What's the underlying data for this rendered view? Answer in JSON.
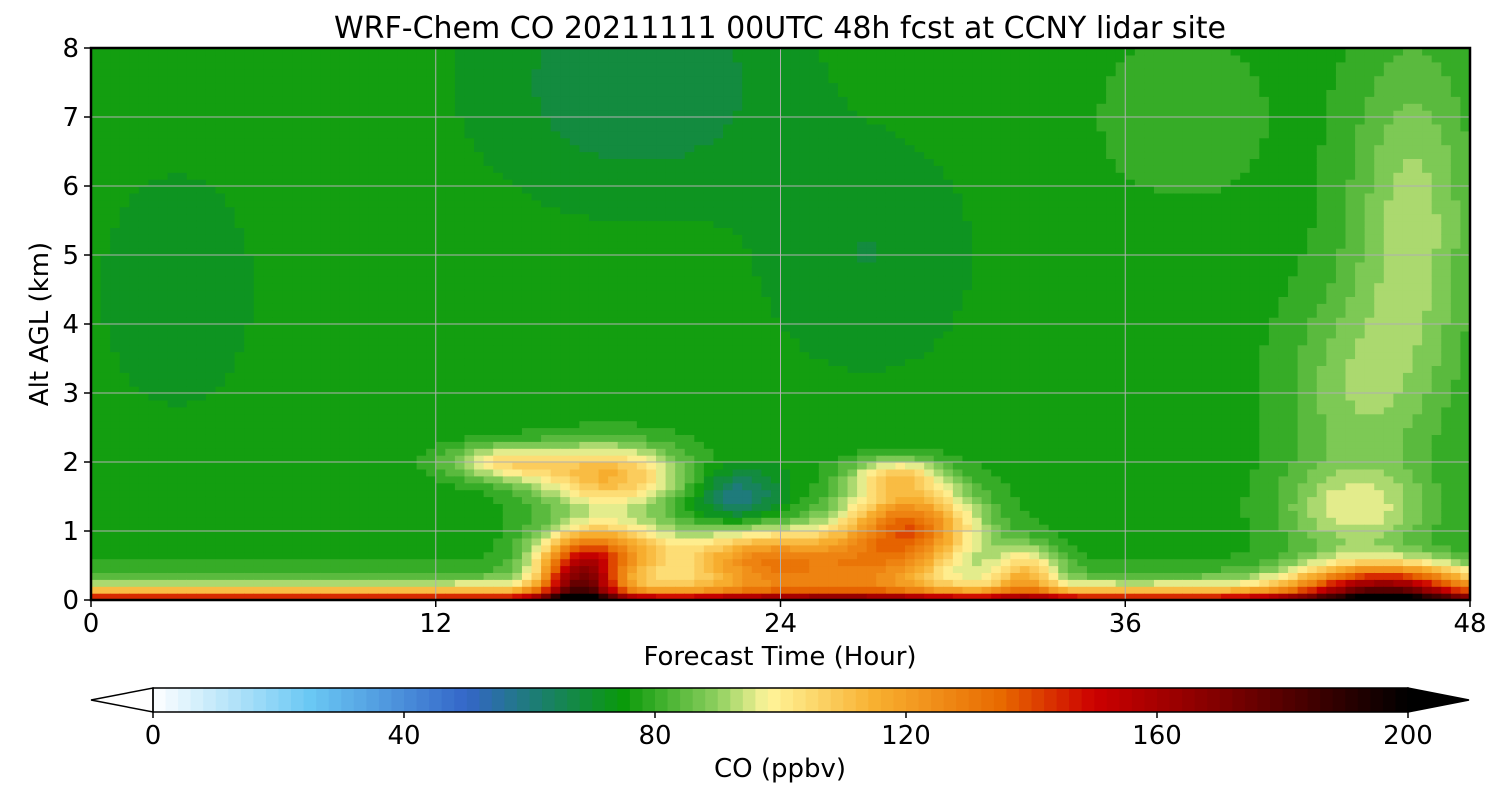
{
  "chart_data": {
    "type": "heatmap",
    "title": "WRF-Chem CO  20211111 00UTC 48h fcst at CCNY lidar site",
    "xlabel": "Forecast Time (Hour)",
    "ylabel": "Alt AGL (km)",
    "xlim": [
      0,
      48
    ],
    "ylim": [
      0,
      8
    ],
    "x_ticks": [
      "0",
      "12",
      "24",
      "36",
      "48"
    ],
    "y_ticks": [
      "0",
      "1",
      "2",
      "3",
      "4",
      "5",
      "6",
      "7",
      "8"
    ],
    "grid": true,
    "colorbar": {
      "label": "CO  (ppbv)",
      "min": 0,
      "max": 200,
      "ticks": [
        "0",
        "40",
        "80",
        "120",
        "160",
        "200"
      ],
      "extend": "both",
      "under_color": "#ffffff",
      "over_color": "#000000",
      "stops": [
        {
          "value": 0,
          "color": "#ffffff"
        },
        {
          "value": 25,
          "color": "#6ac8f4"
        },
        {
          "value": 50,
          "color": "#3466c8"
        },
        {
          "value": 62,
          "color": "#1a7f6c"
        },
        {
          "value": 75,
          "color": "#0a9a0a"
        },
        {
          "value": 90,
          "color": "#8fd060"
        },
        {
          "value": 98,
          "color": "#fff59a"
        },
        {
          "value": 115,
          "color": "#f8b030"
        },
        {
          "value": 135,
          "color": "#e86a00"
        },
        {
          "value": 150,
          "color": "#cc0000"
        },
        {
          "value": 170,
          "color": "#800000"
        },
        {
          "value": 200,
          "color": "#000000"
        }
      ]
    },
    "features": [
      {
        "name": "background",
        "base": 76,
        "x": [
          0,
          48
        ],
        "y": [
          0,
          8
        ]
      },
      {
        "name": "upper-low-co-region",
        "center": [
          19,
          7.5
        ],
        "spread": [
          5,
          1.6
        ],
        "amp": -10
      },
      {
        "name": "left-low-co-region",
        "center": [
          3,
          4.5
        ],
        "spread": [
          2.5,
          1.6
        ],
        "amp": -6
      },
      {
        "name": "mid-low-co-region",
        "center": [
          27,
          5
        ],
        "spread": [
          3.5,
          1.6
        ],
        "amp": -6
      },
      {
        "name": "right-high-co-region",
        "center": [
          46,
          5.5
        ],
        "spread": [
          2.2,
          2.5
        ],
        "amp": 16
      },
      {
        "name": "right-mid-high-co-region",
        "center": [
          44,
          3
        ],
        "spread": [
          2.5,
          1.5
        ],
        "amp": 12
      },
      {
        "name": "right-lower-high-co-region",
        "center": [
          44,
          1.3
        ],
        "spread": [
          2.5,
          0.6
        ],
        "amp": 18
      },
      {
        "name": "upper-right-moderate-region",
        "center": [
          38,
          7
        ],
        "spread": [
          3,
          1.2
        ],
        "amp": 5
      },
      {
        "name": "plume-left",
        "center": [
          18,
          1.8
        ],
        "spread": [
          2.5,
          0.45
        ],
        "amp": 38
      },
      {
        "name": "plume-left-extension",
        "center": [
          14.5,
          2.0
        ],
        "spread": [
          2,
          0.25
        ],
        "amp": 25
      },
      {
        "name": "plume-lower-left",
        "center": [
          18,
          0.7
        ],
        "spread": [
          2.2,
          0.45
        ],
        "amp": 45
      },
      {
        "name": "plume-dark-red-core",
        "center": [
          17,
          0.25
        ],
        "spread": [
          1.3,
          0.5
        ],
        "amp": 70
      },
      {
        "name": "plume-middle-low-dip",
        "center": [
          22.5,
          1.5
        ],
        "spread": [
          1.5,
          0.4
        ],
        "amp": -18
      },
      {
        "name": "plume-middle-lower",
        "center": [
          23,
          0.6
        ],
        "spread": [
          2.5,
          0.45
        ],
        "amp": 40
      },
      {
        "name": "plume-right-core",
        "center": [
          28.5,
          1.1
        ],
        "spread": [
          2.2,
          0.55
        ],
        "amp": 55
      },
      {
        "name": "plume-right-upper",
        "center": [
          28,
          1.8
        ],
        "spread": [
          1.6,
          0.25
        ],
        "amp": 25
      },
      {
        "name": "plume-right-lower",
        "center": [
          26.5,
          0.5
        ],
        "spread": [
          3,
          0.5
        ],
        "amp": 38
      },
      {
        "name": "plume-far-right-lower",
        "center": [
          32.5,
          0.4
        ],
        "spread": [
          1.2,
          0.4
        ],
        "amp": 30
      },
      {
        "name": "surface-layer",
        "x": [
          0,
          48
        ],
        "depth_km": 0.15,
        "amp": 95
      },
      {
        "name": "surface-right-boost",
        "center": [
          45,
          0.2
        ],
        "spread": [
          3,
          0.35
        ],
        "amp": 70
      }
    ]
  }
}
